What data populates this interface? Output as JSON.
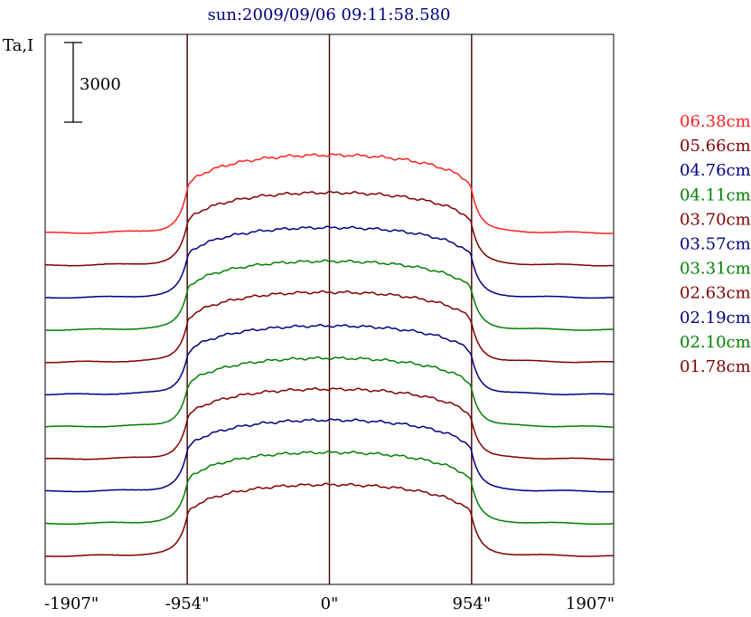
{
  "chart_data": {
    "type": "line",
    "title": "sun:2009/09/06 09:11:58.580",
    "ylabel": "Ta,I",
    "scale_bar_label": "3000",
    "x_ticks": [
      "-1907\"",
      "-954\"",
      "0\"",
      "954\"",
      "1907\""
    ],
    "x_tick_values": [
      -1907,
      -954,
      0,
      954,
      1907
    ],
    "xlim": [
      -1907,
      1907
    ],
    "vertical_markers": [
      -954,
      0,
      954
    ],
    "legend_placement": "right",
    "grid": false,
    "series": [
      {
        "name": "06.38cm",
        "color": "#ff2020",
        "offset": 10,
        "peak": 2950
      },
      {
        "name": "05.66cm",
        "color": "#800000",
        "offset": 9,
        "peak": 2750
      },
      {
        "name": "04.76cm",
        "color": "#000080",
        "offset": 8,
        "peak": 2650
      },
      {
        "name": "04.11cm",
        "color": "#008000",
        "offset": 7,
        "peak": 2600
      },
      {
        "name": "03.70cm",
        "color": "#800000",
        "offset": 6,
        "peak": 2650
      },
      {
        "name": "03.57cm",
        "color": "#000080",
        "offset": 5,
        "peak": 2600
      },
      {
        "name": "03.31cm",
        "color": "#008000",
        "offset": 4,
        "peak": 2600
      },
      {
        "name": "02.63cm",
        "color": "#800000",
        "offset": 3,
        "peak": 2650
      },
      {
        "name": "02.19cm",
        "color": "#000080",
        "offset": 2,
        "peak": 2700
      },
      {
        "name": "02.10cm",
        "color": "#008000",
        "offset": 1,
        "peak": 2700
      },
      {
        "name": "01.78cm",
        "color": "#800000",
        "offset": 0,
        "peak": 2700
      }
    ]
  }
}
